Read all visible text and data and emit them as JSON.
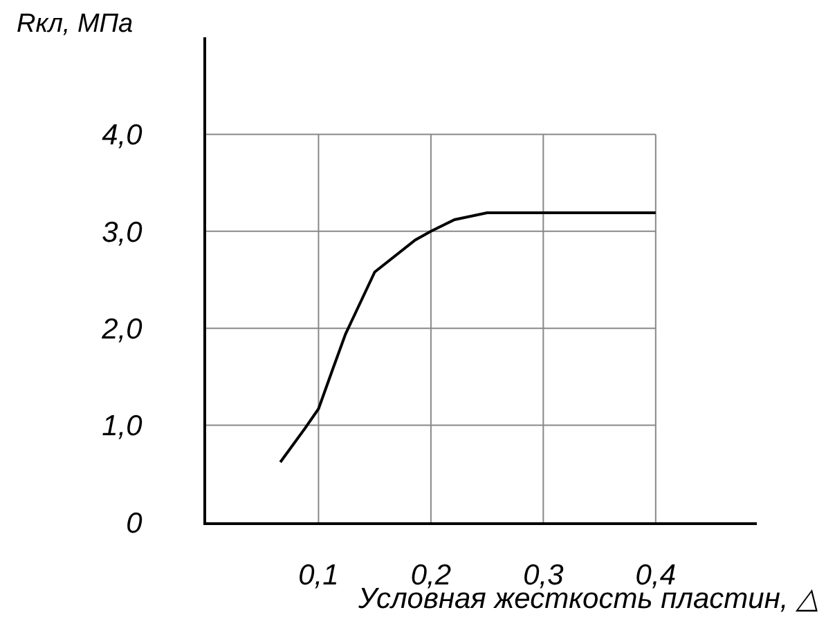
{
  "chart_data": {
    "type": "line",
    "xlabel": "Условная жесткость пластин, △",
    "ylabel": "Rкл, МПа",
    "x": [
      0.066,
      0.088,
      0.1,
      0.113,
      0.124,
      0.15,
      0.186,
      0.2,
      0.221,
      0.25,
      0.4
    ],
    "series": [
      {
        "color": "#000000",
        "values": [
          0.62,
          0.97,
          1.17,
          1.59,
          1.94,
          2.58,
          2.91,
          3.0,
          3.12,
          3.19,
          3.19
        ]
      }
    ],
    "xlim": [
      0,
      0.49
    ],
    "ylim": [
      0,
      5
    ],
    "xticks": [
      {
        "value": 0.1,
        "label": "0,1"
      },
      {
        "value": 0.2,
        "label": "0,2"
      },
      {
        "value": 0.3,
        "label": "0,3"
      },
      {
        "value": 0.4,
        "label": "0,4"
      }
    ],
    "yticks": [
      0,
      {
        "value": 1,
        "label": "1,0"
      },
      {
        "value": 2,
        "label": "2,0"
      },
      {
        "value": 3,
        "label": "3,0"
      },
      {
        "value": 4,
        "label": "4,0"
      }
    ],
    "grid": true,
    "legend": false,
    "marker": "none",
    "line_style": "solid"
  }
}
